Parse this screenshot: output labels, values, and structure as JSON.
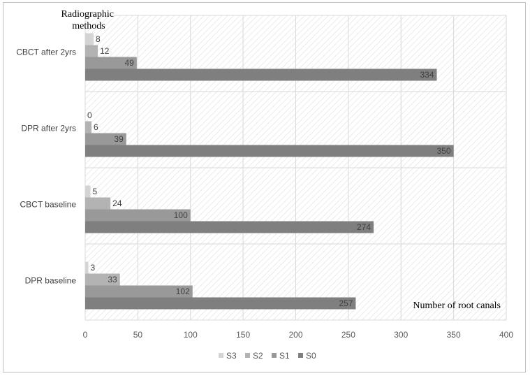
{
  "chart_data": {
    "type": "bar",
    "orientation": "horizontal",
    "categories": [
      "DPR baseline",
      "CBCT baseline",
      "DPR after 2yrs",
      "CBCT after 2yrs"
    ],
    "series": [
      {
        "name": "S0",
        "color": "#7f7f7f",
        "values": [
          257,
          274,
          350,
          334
        ]
      },
      {
        "name": "S1",
        "color": "#999999",
        "values": [
          102,
          100,
          39,
          49
        ]
      },
      {
        "name": "S2",
        "color": "#b3b3b3",
        "values": [
          33,
          24,
          6,
          12
        ]
      },
      {
        "name": "S3",
        "color": "#d4d4d4",
        "values": [
          3,
          5,
          0,
          8
        ]
      }
    ],
    "xlabel": "Number of root canals",
    "ylabel": "Radiographic methods",
    "xlim": [
      0,
      400
    ],
    "xticks": [
      0,
      50,
      100,
      150,
      200,
      250,
      300,
      350,
      400
    ],
    "grid": true,
    "plot_background": "hatched",
    "legend_position": "bottom",
    "legend_order": [
      "S3",
      "S2",
      "S1",
      "S0"
    ]
  }
}
